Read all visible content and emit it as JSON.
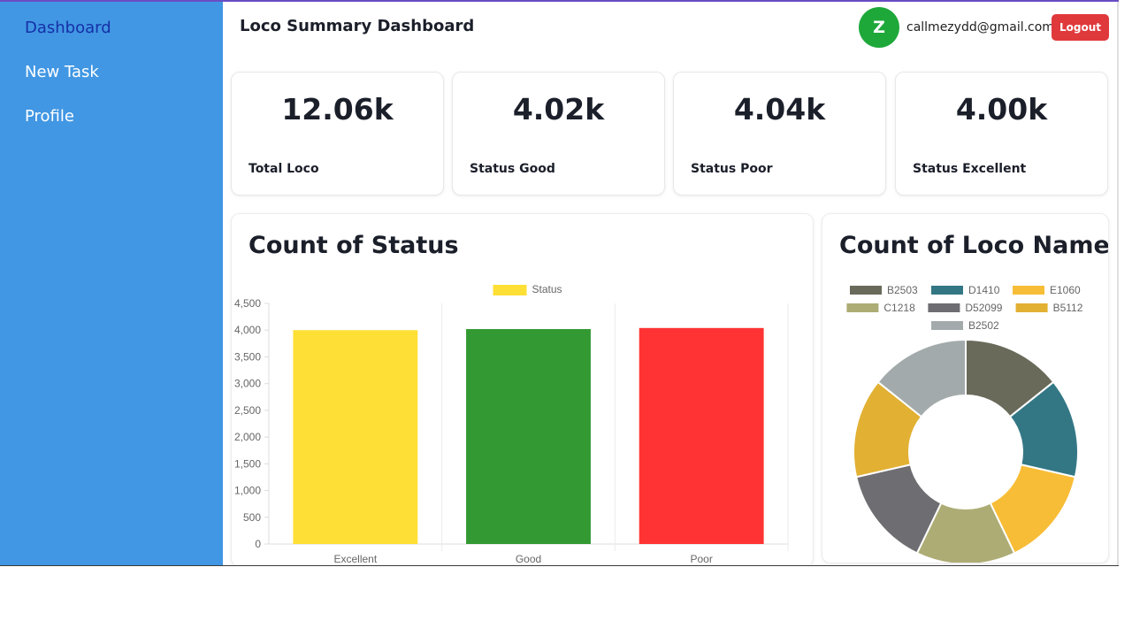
{
  "sidebar": {
    "items": [
      {
        "label": "Dashboard",
        "active": true
      },
      {
        "label": "New Task",
        "active": false
      },
      {
        "label": "Profile",
        "active": false
      }
    ]
  },
  "header": {
    "title": "Loco Summary Dashboard",
    "avatar_initial": "Z",
    "email": "callmezydd@gmail.com",
    "logout_label": "Logout"
  },
  "stats": [
    {
      "value": "12.06k",
      "label": "Total Loco"
    },
    {
      "value": "4.02k",
      "label": "Status Good"
    },
    {
      "value": "4.04k",
      "label": "Status Poor"
    },
    {
      "value": "4.00k",
      "label": "Status Excellent"
    }
  ],
  "charts": {
    "status_title": "Count of Status",
    "loco_title": "Count of Loco Name"
  },
  "chart_data": [
    {
      "type": "bar",
      "title": "Count of Status",
      "categories": [
        "Excellent",
        "Good",
        "Poor"
      ],
      "series": [
        {
          "name": "Status",
          "values": [
            4000,
            4020,
            4040
          ]
        }
      ],
      "colors": [
        "#fedf35",
        "#339933",
        "#ff3333"
      ],
      "ylim": [
        0,
        4500
      ],
      "yticks": [
        "0",
        "500",
        "1,000",
        "1,500",
        "2,000",
        "2,500",
        "3,000",
        "3,500",
        "4,000",
        "4,500"
      ],
      "legend_position": "top",
      "grid": true
    },
    {
      "type": "pie",
      "title": "Count of Loco Name",
      "labels": [
        "B2503",
        "D1410",
        "E1060",
        "C1218",
        "D52099",
        "B5112",
        "B2502"
      ],
      "values": [
        1,
        1,
        1,
        1,
        1,
        1,
        1
      ],
      "colors": [
        "#696a5a",
        "#337785",
        "#f8bd36",
        "#adac74",
        "#6d6d72",
        "#e2b033",
        "#a3aaab"
      ],
      "legend_position": "top"
    }
  ]
}
